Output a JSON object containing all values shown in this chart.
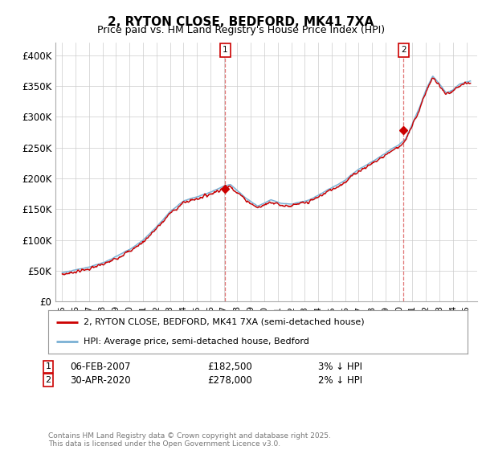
{
  "title": "2, RYTON CLOSE, BEDFORD, MK41 7XA",
  "subtitle": "Price paid vs. HM Land Registry's House Price Index (HPI)",
  "ylabel_ticks": [
    "£0",
    "£50K",
    "£100K",
    "£150K",
    "£200K",
    "£250K",
    "£300K",
    "£350K",
    "£400K"
  ],
  "ytick_values": [
    0,
    50000,
    100000,
    150000,
    200000,
    250000,
    300000,
    350000,
    400000
  ],
  "ylim": [
    0,
    420000
  ],
  "xlim_start": 1994.5,
  "xlim_end": 2025.8,
  "line1_color": "#cc0000",
  "line2_color": "#7ab0d4",
  "fill_color": "#d0e8f5",
  "line1_label": "2, RYTON CLOSE, BEDFORD, MK41 7XA (semi-detached house)",
  "line2_label": "HPI: Average price, semi-detached house, Bedford",
  "sale1_date": "06-FEB-2007",
  "sale1_price": 182500,
  "sale1_pct": "3% ↓ HPI",
  "sale1_year": 2007.1,
  "sale2_date": "30-APR-2020",
  "sale2_price": 278000,
  "sale2_pct": "2% ↓ HPI",
  "sale2_year": 2020.33,
  "footer": "Contains HM Land Registry data © Crown copyright and database right 2025.\nThis data is licensed under the Open Government Licence v3.0.",
  "bg_color": "#ffffff",
  "grid_color": "#cccccc",
  "marker_edge_color": "#cc0000"
}
